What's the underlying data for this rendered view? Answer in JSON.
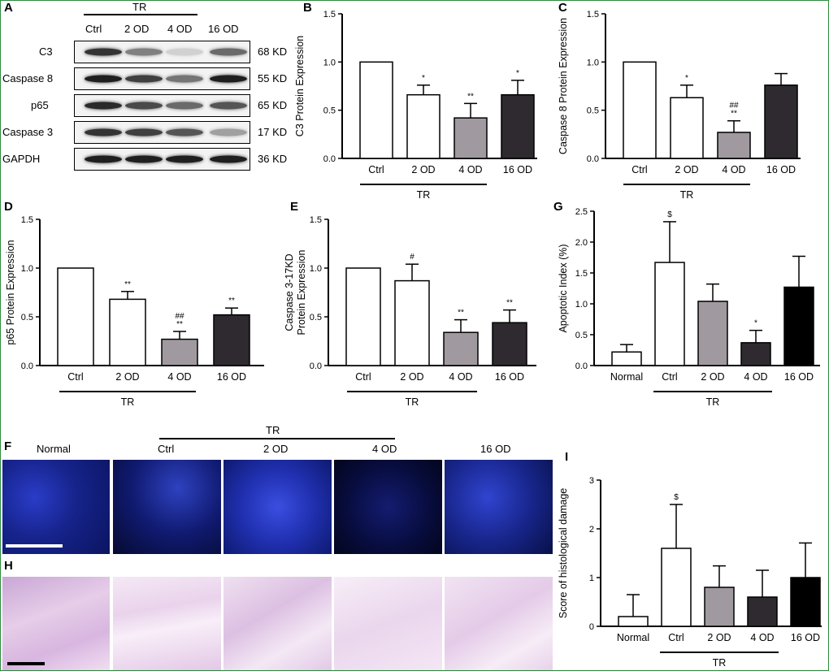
{
  "panel_labels": {
    "a": "A",
    "b": "B",
    "c": "C",
    "d": "D",
    "e": "E",
    "f": "F",
    "g": "G",
    "h": "H",
    "i": "I"
  },
  "western": {
    "group_label": "TR",
    "lanes": [
      "Ctrl",
      "2 OD",
      "4 OD",
      "16 OD"
    ],
    "rows": [
      {
        "protein": "C3",
        "size": "68 KD",
        "intensity": [
          0.85,
          0.5,
          0.12,
          0.6
        ]
      },
      {
        "protein": "Caspase 8",
        "size": "55 KD",
        "intensity": [
          0.95,
          0.8,
          0.55,
          0.95
        ]
      },
      {
        "protein": "p65",
        "size": "65 KD",
        "intensity": [
          0.9,
          0.75,
          0.6,
          0.7
        ]
      },
      {
        "protein": "Caspase 3",
        "size": "17 KD",
        "intensity": [
          0.85,
          0.8,
          0.7,
          0.35
        ]
      },
      {
        "protein": "GAPDH",
        "size": "36 KD",
        "intensity": [
          0.95,
          0.95,
          0.95,
          0.95
        ]
      }
    ]
  },
  "micrographs": {
    "group_label": "TR",
    "columns": [
      "Normal",
      "Ctrl",
      "2 OD",
      "4 OD",
      "16 OD"
    ]
  },
  "colors": {
    "white": "#ffffff",
    "gray": "#a09aa0",
    "dark": "#2e2a30",
    "black": "#000000"
  },
  "chart_data": [
    {
      "id": "B",
      "type": "bar",
      "ylabel": "C3 Protein Expression",
      "categories": [
        "Ctrl",
        "2 OD",
        "4 OD",
        "16 OD"
      ],
      "values": [
        1.0,
        0.66,
        0.42,
        0.66
      ],
      "errors": [
        0,
        0.1,
        0.15,
        0.15
      ],
      "fills": [
        "white",
        "white",
        "gray",
        "dark"
      ],
      "annotations": [
        "",
        "*",
        "**",
        "*"
      ],
      "ylim": [
        0,
        1.5
      ],
      "yticks": [
        "0.0",
        "0.5",
        "1.0",
        "1.5"
      ],
      "group": {
        "label": "TR",
        "from": 0,
        "to": 2
      }
    },
    {
      "id": "C",
      "type": "bar",
      "ylabel": "Caspase 8 Protein Expression",
      "categories": [
        "Ctrl",
        "2 OD",
        "4 OD",
        "16 OD"
      ],
      "values": [
        1.0,
        0.63,
        0.27,
        0.76
      ],
      "errors": [
        0,
        0.13,
        0.12,
        0.12
      ],
      "fills": [
        "white",
        "white",
        "gray",
        "dark"
      ],
      "annotations": [
        "",
        "*",
        "##\n**",
        ""
      ],
      "ylim": [
        0,
        1.5
      ],
      "yticks": [
        "0.0",
        "0.5",
        "1.0",
        "1.5"
      ],
      "group": {
        "label": "TR",
        "from": 0,
        "to": 2
      }
    },
    {
      "id": "D",
      "type": "bar",
      "ylabel": "p65 Protein Expression",
      "categories": [
        "Ctrl",
        "2 OD",
        "4 OD",
        "16 OD"
      ],
      "values": [
        1.0,
        0.68,
        0.27,
        0.52
      ],
      "errors": [
        0,
        0.08,
        0.08,
        0.07
      ],
      "fills": [
        "white",
        "white",
        "gray",
        "dark"
      ],
      "annotations": [
        "",
        "**",
        "##\n**",
        "**"
      ],
      "ylim": [
        0,
        1.5
      ],
      "yticks": [
        "0.0",
        "0.5",
        "1.0",
        "1.5"
      ],
      "group": {
        "label": "TR",
        "from": 0,
        "to": 2
      }
    },
    {
      "id": "E",
      "type": "bar",
      "ylabel": "Caspase 3-17KD\nProtein Expression",
      "categories": [
        "Ctrl",
        "2 OD",
        "4 OD",
        "16 OD"
      ],
      "values": [
        1.0,
        0.87,
        0.34,
        0.44
      ],
      "errors": [
        0,
        0.17,
        0.13,
        0.13
      ],
      "fills": [
        "white",
        "white",
        "gray",
        "dark"
      ],
      "annotations": [
        "",
        "#",
        "**",
        "**"
      ],
      "ylim": [
        0,
        1.5
      ],
      "yticks": [
        "0.0",
        "0.5",
        "1.0",
        "1.5"
      ],
      "group": {
        "label": "TR",
        "from": 0,
        "to": 2
      }
    },
    {
      "id": "G",
      "type": "bar",
      "ylabel": "Apoptotic Index (%)",
      "categories": [
        "Normal",
        "Ctrl",
        "2 OD",
        "4 OD",
        "16 OD"
      ],
      "values": [
        0.22,
        1.67,
        1.04,
        0.37,
        1.27
      ],
      "errors": [
        0.12,
        0.66,
        0.28,
        0.2,
        0.5
      ],
      "fills": [
        "white",
        "white",
        "gray",
        "dark",
        "black"
      ],
      "annotations": [
        "",
        "$",
        "",
        "*",
        ""
      ],
      "ylim": [
        0,
        2.5
      ],
      "yticks": [
        "0.0",
        "0.5",
        "1.0",
        "1.5",
        "2.0",
        "2.5"
      ],
      "group": {
        "label": "TR",
        "from": 1,
        "to": 3
      }
    },
    {
      "id": "I",
      "type": "bar",
      "ylabel": "Score of histological damage",
      "categories": [
        "Normal",
        "Ctrl",
        "2 OD",
        "4 OD",
        "16 OD"
      ],
      "values": [
        0.2,
        1.6,
        0.8,
        0.6,
        1.0
      ],
      "errors": [
        0.45,
        0.9,
        0.44,
        0.55,
        0.71
      ],
      "fills": [
        "white",
        "white",
        "gray",
        "dark",
        "black"
      ],
      "annotations": [
        "",
        "$",
        "",
        "",
        ""
      ],
      "ylim": [
        0,
        3
      ],
      "yticks": [
        "0",
        "1",
        "2",
        "3"
      ],
      "group": {
        "label": "TR",
        "from": 1,
        "to": 3
      }
    }
  ]
}
